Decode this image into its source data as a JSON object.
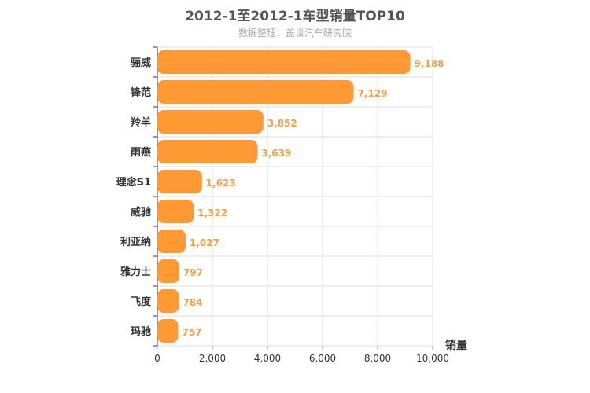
{
  "chart_data": {
    "type": "bar",
    "orientation": "horizontal",
    "title": "2012-1至2012-1车型销量TOP10",
    "subtitle": "数据整理：盖世汽车研究院",
    "categories": [
      "骊威",
      "锋范",
      "羚羊",
      "雨燕",
      "理念S1",
      "威驰",
      "利亚纳",
      "雅力士",
      "飞度",
      "玛驰"
    ],
    "values": [
      9188,
      7129,
      3852,
      3639,
      1623,
      1322,
      1027,
      797,
      784,
      757
    ],
    "value_labels": [
      "9,188",
      "7,129",
      "3,852",
      "3,639",
      "1,623",
      "1,322",
      "1,027",
      "797",
      "784",
      "757"
    ],
    "xlabel": "销量",
    "ylabel": "",
    "xlim": [
      0,
      10000
    ],
    "ticks": [
      0,
      2000,
      4000,
      6000,
      8000,
      10000
    ],
    "tick_labels": [
      "0",
      "2,000",
      "4,000",
      "6,000",
      "8,000",
      "10,000"
    ],
    "grid": true,
    "bar_color": "#ff9933",
    "label_color": "#f0a040",
    "grid_color": "#dddddd",
    "axis_color": "#333333"
  }
}
